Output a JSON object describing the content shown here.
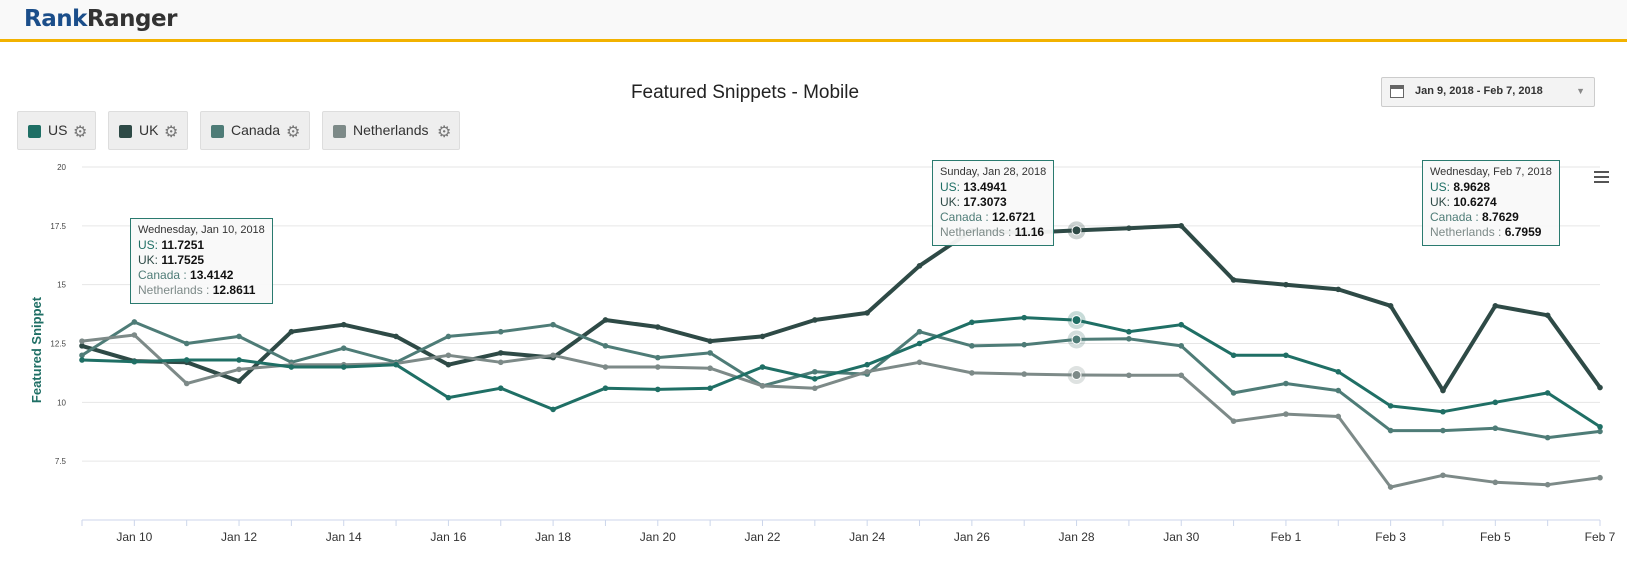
{
  "header": {
    "logo_part1": "Rank",
    "logo_part2": "Ranger"
  },
  "date_range": {
    "label": "Jan 9, 2018 - Feb 7, 2018",
    "arrow": "▼"
  },
  "legend": [
    {
      "name": "US",
      "color": "#1f6f65"
    },
    {
      "name": "UK",
      "color": "#2e4a46"
    },
    {
      "name": "Canada",
      "color": "#4e7c77"
    },
    {
      "name": "Netherlands",
      "color": "#7d8a88"
    }
  ],
  "tooltips": [
    {
      "header": "Wednesday, Jan 10, 2018",
      "us": "11.7251",
      "uk": "11.7525",
      "ca": "13.4142",
      "nl": "12.8611"
    },
    {
      "header": "Sunday, Jan 28, 2018",
      "us": "13.4941",
      "uk": "17.3073",
      "ca": "12.6721",
      "nl": "11.16"
    },
    {
      "header": "Wednesday, Feb 7, 2018",
      "us": "8.9628",
      "uk": "10.6274",
      "ca": "8.7629",
      "nl": "6.7959"
    }
  ],
  "tooltip_labels": {
    "us": "US: ",
    "uk": "UK: ",
    "ca": "Canada : ",
    "nl": "Netherlands : "
  },
  "chart_data": {
    "type": "line",
    "title": "Featured Snippets - Mobile",
    "ylabel": "Featured Snippet",
    "xlabel": "",
    "ylim": [
      5,
      20
    ],
    "yticks": [
      "20",
      "17.5",
      "15",
      "12.5",
      "10",
      "7.5"
    ],
    "x": [
      "Jan 9",
      "Jan 10",
      "Jan 11",
      "Jan 12",
      "Jan 13",
      "Jan 14",
      "Jan 15",
      "Jan 16",
      "Jan 17",
      "Jan 18",
      "Jan 19",
      "Jan 20",
      "Jan 21",
      "Jan 22",
      "Jan 23",
      "Jan 24",
      "Jan 25",
      "Jan 26",
      "Jan 27",
      "Jan 28",
      "Jan 29",
      "Jan 30",
      "Jan 31",
      "Feb 1",
      "Feb 2",
      "Feb 3",
      "Feb 4",
      "Feb 5",
      "Feb 6",
      "Feb 7"
    ],
    "xtick_labels": [
      "Jan 10",
      "Jan 12",
      "Jan 14",
      "Jan 16",
      "Jan 18",
      "Jan 20",
      "Jan 22",
      "Jan 24",
      "Jan 26",
      "Jan 28",
      "Jan 30",
      "Feb 1",
      "Feb 3",
      "Feb 5",
      "Feb 7"
    ],
    "grid": true,
    "legend_position": "top-left",
    "series": [
      {
        "name": "UK",
        "color": "#2e4a46",
        "values": [
          12.4,
          11.7525,
          11.7,
          10.9,
          13.0,
          13.3,
          12.8,
          11.6,
          12.1,
          11.9,
          13.5,
          13.2,
          12.6,
          12.8,
          13.5,
          13.8,
          15.8,
          17.3,
          17.2,
          17.3073,
          17.4,
          17.5,
          15.2,
          15.0,
          14.8,
          14.1,
          10.5,
          14.1,
          13.7,
          10.6274
        ]
      },
      {
        "name": "Canada",
        "color": "#4e7c77",
        "values": [
          12.0,
          13.4142,
          12.5,
          12.8,
          11.7,
          12.3,
          11.7,
          12.8,
          13.0,
          13.3,
          12.4,
          11.9,
          12.1,
          10.7,
          11.3,
          11.2,
          13.0,
          12.4,
          12.45,
          12.6721,
          12.7,
          12.4,
          10.4,
          10.8,
          10.5,
          8.8,
          8.8,
          8.9,
          8.5,
          8.7629
        ]
      },
      {
        "name": "Netherlands",
        "color": "#7d8a88",
        "values": [
          12.6,
          12.8611,
          10.8,
          11.4,
          11.6,
          11.6,
          11.65,
          12.0,
          11.7,
          12.0,
          11.5,
          11.5,
          11.45,
          10.7,
          10.6,
          11.3,
          11.7,
          11.25,
          11.2,
          11.16,
          11.15,
          11.15,
          9.2,
          9.5,
          9.4,
          6.4,
          6.9,
          6.6,
          6.5,
          6.7959
        ]
      },
      {
        "name": "US",
        "color": "#1f6f65",
        "values": [
          11.8,
          11.7251,
          11.8,
          11.8,
          11.5,
          11.5,
          11.6,
          10.2,
          10.6,
          9.7,
          10.6,
          10.55,
          10.6,
          11.5,
          11.0,
          11.6,
          12.5,
          13.4,
          13.6,
          13.4941,
          13.0,
          13.3,
          12.0,
          12.0,
          11.3,
          9.85,
          9.6,
          10.0,
          10.4,
          8.9628
        ]
      }
    ]
  }
}
